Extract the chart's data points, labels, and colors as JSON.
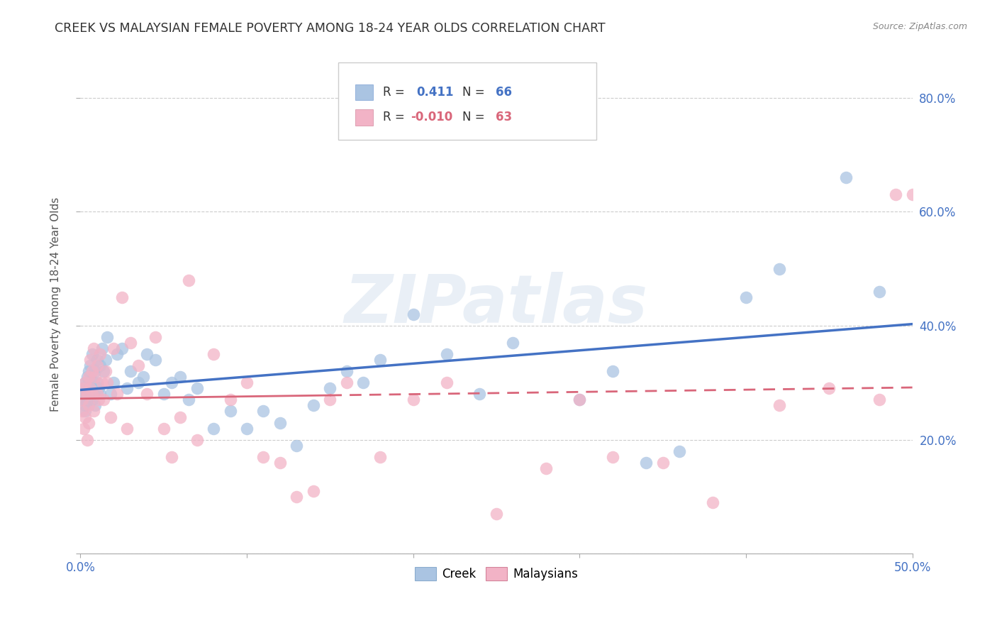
{
  "title": "CREEK VS MALAYSIAN FEMALE POVERTY AMONG 18-24 YEAR OLDS CORRELATION CHART",
  "source": "Source: ZipAtlas.com",
  "ylabel": "Female Poverty Among 18-24 Year Olds",
  "x_range": [
    0.0,
    0.5
  ],
  "y_range": [
    0.0,
    0.875
  ],
  "creek_R": 0.411,
  "creek_N": 66,
  "malaysian_R": -0.01,
  "malaysian_N": 63,
  "creek_color": "#aac4e2",
  "malaysian_color": "#f2b3c6",
  "creek_line_color": "#4472c4",
  "malaysian_line_color": "#d9667a",
  "watermark_text": "ZIPatlas",
  "creek_x": [
    0.001,
    0.002,
    0.002,
    0.003,
    0.003,
    0.003,
    0.004,
    0.004,
    0.005,
    0.005,
    0.005,
    0.006,
    0.006,
    0.007,
    0.007,
    0.008,
    0.008,
    0.009,
    0.009,
    0.01,
    0.01,
    0.011,
    0.012,
    0.012,
    0.013,
    0.014,
    0.015,
    0.016,
    0.018,
    0.02,
    0.022,
    0.025,
    0.028,
    0.03,
    0.035,
    0.038,
    0.04,
    0.045,
    0.05,
    0.055,
    0.06,
    0.065,
    0.07,
    0.08,
    0.09,
    0.1,
    0.11,
    0.12,
    0.13,
    0.14,
    0.15,
    0.16,
    0.17,
    0.18,
    0.2,
    0.22,
    0.24,
    0.26,
    0.3,
    0.32,
    0.34,
    0.36,
    0.4,
    0.42,
    0.46,
    0.48
  ],
  "creek_y": [
    0.27,
    0.29,
    0.28,
    0.3,
    0.26,
    0.25,
    0.31,
    0.27,
    0.3,
    0.28,
    0.32,
    0.29,
    0.33,
    0.27,
    0.35,
    0.3,
    0.28,
    0.32,
    0.26,
    0.34,
    0.3,
    0.29,
    0.33,
    0.28,
    0.36,
    0.32,
    0.34,
    0.38,
    0.28,
    0.3,
    0.35,
    0.36,
    0.29,
    0.32,
    0.3,
    0.31,
    0.35,
    0.34,
    0.28,
    0.3,
    0.31,
    0.27,
    0.29,
    0.22,
    0.25,
    0.22,
    0.25,
    0.23,
    0.19,
    0.26,
    0.29,
    0.32,
    0.3,
    0.34,
    0.42,
    0.35,
    0.28,
    0.37,
    0.27,
    0.32,
    0.16,
    0.18,
    0.45,
    0.5,
    0.66,
    0.46
  ],
  "malaysian_x": [
    0.001,
    0.001,
    0.002,
    0.002,
    0.003,
    0.003,
    0.004,
    0.004,
    0.005,
    0.005,
    0.005,
    0.006,
    0.006,
    0.007,
    0.007,
    0.008,
    0.008,
    0.009,
    0.01,
    0.01,
    0.011,
    0.012,
    0.013,
    0.014,
    0.015,
    0.016,
    0.018,
    0.02,
    0.022,
    0.025,
    0.028,
    0.03,
    0.035,
    0.04,
    0.045,
    0.05,
    0.055,
    0.06,
    0.065,
    0.07,
    0.08,
    0.09,
    0.1,
    0.11,
    0.12,
    0.13,
    0.14,
    0.15,
    0.16,
    0.18,
    0.2,
    0.22,
    0.25,
    0.28,
    0.3,
    0.32,
    0.35,
    0.38,
    0.42,
    0.45,
    0.48,
    0.49,
    0.5
  ],
  "malaysian_y": [
    0.27,
    0.25,
    0.29,
    0.22,
    0.24,
    0.3,
    0.28,
    0.2,
    0.31,
    0.26,
    0.23,
    0.34,
    0.29,
    0.28,
    0.32,
    0.25,
    0.36,
    0.31,
    0.28,
    0.33,
    0.27,
    0.35,
    0.3,
    0.27,
    0.32,
    0.3,
    0.24,
    0.36,
    0.28,
    0.45,
    0.22,
    0.37,
    0.33,
    0.28,
    0.38,
    0.22,
    0.17,
    0.24,
    0.48,
    0.2,
    0.35,
    0.27,
    0.3,
    0.17,
    0.16,
    0.1,
    0.11,
    0.27,
    0.3,
    0.17,
    0.27,
    0.3,
    0.07,
    0.15,
    0.27,
    0.17,
    0.16,
    0.09,
    0.26,
    0.29,
    0.27,
    0.63,
    0.63
  ],
  "x_ticks": [
    0.0,
    0.1,
    0.2,
    0.3,
    0.4,
    0.5
  ],
  "y_ticks": [
    0.0,
    0.2,
    0.4,
    0.6,
    0.8
  ],
  "background_color": "#ffffff",
  "grid_color": "#cccccc"
}
